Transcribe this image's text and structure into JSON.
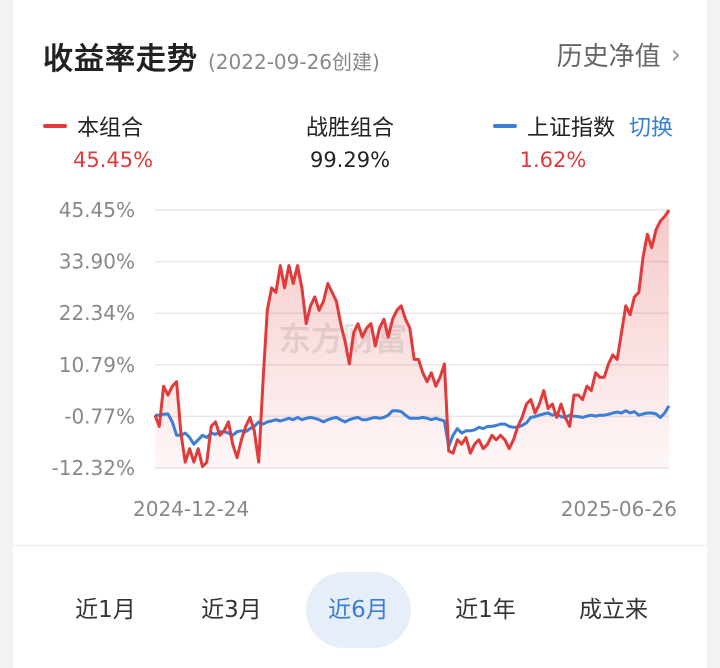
{
  "header": {
    "title": "收益率走势",
    "subtitle": "(2022-09-26创建)",
    "nav_label": "历史净值",
    "nav_icon": "chevron-right-icon"
  },
  "legend": {
    "portfolio": {
      "label": "本组合",
      "value": "45.45%",
      "color": "#e03a3a"
    },
    "beat": {
      "label": "战胜组合",
      "value": "99.29%"
    },
    "index": {
      "label": "上证指数",
      "value": "1.62%",
      "color": "#3a7ed6"
    },
    "switch_label": "切换"
  },
  "ranges": [
    "近1月",
    "近3月",
    "近6月",
    "近1年",
    "成立来"
  ],
  "active_range": "近6月",
  "chart_data": {
    "type": "line",
    "x_start_label": "2024-12-24",
    "x_end_label": "2025-06-26",
    "y_tick_labels": [
      "45.45%",
      "33.90%",
      "22.34%",
      "10.79%",
      "-0.77%",
      "-12.32%"
    ],
    "y_ticks": [
      45.45,
      33.9,
      22.34,
      10.79,
      -0.77,
      -12.32
    ],
    "ylim": [
      -12.32,
      45.45
    ],
    "grid": true,
    "watermark": "东方财富",
    "series": [
      {
        "name": "本组合",
        "color": "#e03a3a",
        "values": [
          -0.5,
          -3,
          6,
          4,
          6,
          7,
          -4.5,
          -11,
          -8,
          -11,
          -8,
          -12,
          -11,
          -3,
          -2,
          -5,
          -4,
          -2,
          -7,
          -10,
          -6,
          -3,
          -1,
          -4,
          -11,
          7,
          23,
          28,
          27,
          33,
          28,
          33,
          29,
          33,
          28,
          20,
          24,
          26,
          23,
          25,
          29,
          27,
          25,
          20,
          16,
          11,
          18,
          20,
          17,
          19,
          20,
          15,
          19,
          21,
          17,
          21,
          23,
          24,
          21,
          19,
          12,
          12,
          9,
          7,
          9,
          6,
          8,
          11,
          -8.5,
          -9,
          -6,
          -7,
          -5.5,
          -9,
          -7,
          -6,
          -8,
          -7,
          -5,
          -6,
          -5,
          -6,
          -8,
          -6,
          -3,
          -1,
          2,
          3,
          0,
          2,
          5,
          1,
          2,
          -1,
          2,
          -1,
          -3,
          4,
          4,
          3,
          6,
          5,
          9,
          8,
          8,
          11,
          13,
          12,
          18,
          24,
          22,
          26,
          27,
          35,
          40,
          37,
          41,
          43,
          44,
          45.45
        ]
      },
      {
        "name": "上证指数",
        "color": "#3a7ed6",
        "values": [
          -0.5,
          -0.5,
          -0.3,
          -0.2,
          -2,
          -5,
          -5,
          -4.5,
          -5.5,
          -7,
          -6,
          -5,
          -5.5,
          -4.5,
          -4.8,
          -4.2,
          -4.2,
          -4.5,
          -5,
          -4.2,
          -4,
          -4.2,
          -3.5,
          -3,
          -2,
          -2.5,
          -2,
          -1.8,
          -1.5,
          -1.8,
          -1.5,
          -1.2,
          -1.5,
          -1,
          -1.5,
          -1.2,
          -1,
          -1.2,
          -1.5,
          -2,
          -1.5,
          -1.2,
          -1,
          -1.5,
          -2,
          -1.5,
          -1.2,
          -1,
          -1.5,
          -1.5,
          -1.2,
          -1,
          -1.2,
          -1,
          -0.5,
          0.5,
          0.5,
          0.3,
          -0.5,
          -1.2,
          -1.2,
          -1.2,
          -1,
          -1.2,
          -1.5,
          -1.2,
          -1.5,
          -1.8,
          -7.5,
          -5,
          -3.5,
          -4.5,
          -4,
          -4,
          -3.8,
          -3.2,
          -3.5,
          -3,
          -3,
          -2.8,
          -2.5,
          -2.5,
          -3,
          -3.2,
          -3.2,
          -2.8,
          -2.2,
          -1,
          -0.8,
          -0.5,
          -0.2,
          0,
          -0.5,
          -0.2,
          -0.8,
          -1,
          -0.5,
          -0.7,
          -0.8,
          -1,
          -0.7,
          -0.5,
          -0.7,
          -0.5,
          -0.5,
          -0.3,
          0,
          0.2,
          0,
          0.5,
          0,
          0.3,
          -0.5,
          -0.2,
          0,
          0,
          -0.2,
          -1,
          0,
          1.62
        ]
      }
    ]
  }
}
